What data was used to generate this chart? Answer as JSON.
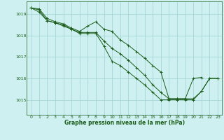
{
  "xlabel": "Graphe pression niveau de la mer (hPa)",
  "x_ticks": [
    0,
    1,
    2,
    3,
    4,
    5,
    6,
    7,
    8,
    9,
    10,
    11,
    12,
    13,
    14,
    15,
    16,
    17,
    18,
    19,
    20,
    21,
    22,
    23
  ],
  "y_ticks": [
    1015,
    1016,
    1017,
    1018,
    1019
  ],
  "xlim": [
    -0.5,
    23.5
  ],
  "ylim": [
    1014.3,
    1019.6
  ],
  "bg_color": "#cff0f0",
  "line_color": "#1a5c1a",
  "grid_color": "#9ecfcf",
  "series": [
    [
      1019.3,
      1019.25,
      1018.8,
      1018.65,
      1018.55,
      1018.35,
      1018.2,
      1018.45,
      1018.65,
      1018.3,
      1018.2,
      1017.8,
      1017.55,
      1017.25,
      1016.95,
      1016.6,
      1016.3,
      1015.05,
      1015.05,
      1015.05,
      1016.0,
      1016.05,
      null,
      null
    ],
    [
      1019.3,
      1019.2,
      1018.7,
      1018.6,
      1018.5,
      1018.3,
      1018.15,
      1018.15,
      1018.15,
      1017.75,
      1017.4,
      1017.15,
      1016.85,
      1016.5,
      1016.15,
      1015.7,
      1015.35,
      1015.05,
      1015.05,
      1015.05,
      1015.05,
      1015.4,
      1016.0,
      1016.0
    ],
    [
      1019.3,
      1019.1,
      1018.7,
      1018.6,
      1018.45,
      1018.3,
      1018.1,
      1018.1,
      1018.1,
      1017.5,
      1016.8,
      1016.6,
      1016.3,
      1016.0,
      1015.7,
      1015.35,
      1015.0,
      1015.0,
      1015.0,
      1015.0,
      1015.0,
      1015.4,
      1016.0,
      1016.0
    ]
  ]
}
